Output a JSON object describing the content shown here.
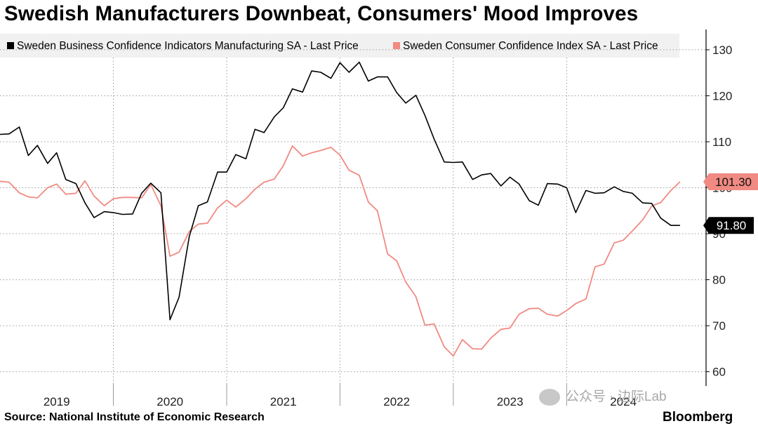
{
  "title": "Swedish Manufacturers Downbeat, Consumers' Mood Improves",
  "footer": {
    "source": "Source: National Institute of Economic Research",
    "brand": "Bloomberg"
  },
  "watermark": {
    "text": "公众号 · 边际Lab"
  },
  "chart_data": {
    "type": "line",
    "grid": true,
    "legend_position": "top-left",
    "yticks": [
      60,
      70,
      80,
      90,
      100,
      110,
      120,
      130
    ],
    "ylim": [
      57.5,
      133.5
    ],
    "xlim": [
      2018.5,
      2024.73
    ],
    "xticks": [
      {
        "label": "2019",
        "pos": 2019.0
      },
      {
        "label": "2020",
        "pos": 2020.0
      },
      {
        "label": "2021",
        "pos": 2021.0
      },
      {
        "label": "2022",
        "pos": 2022.0
      },
      {
        "label": "2023",
        "pos": 2023.0
      },
      {
        "label": "2024",
        "pos": 2024.0
      }
    ],
    "year_separators": [
      2019.5,
      2020.5,
      2021.5,
      2022.5,
      2023.5
    ],
    "series": [
      {
        "name": "Sweden Business Confidence Indicators Manufacturing SA - Last Price",
        "color": "#000000",
        "last_label": "91.80",
        "x": [
          2018.5,
          2018.58,
          2018.67,
          2018.75,
          2018.83,
          2018.92,
          2019.0,
          2019.08,
          2019.17,
          2019.25,
          2019.33,
          2019.42,
          2019.5,
          2019.58,
          2019.67,
          2019.75,
          2019.83,
          2019.92,
          2020.0,
          2020.08,
          2020.17,
          2020.25,
          2020.33,
          2020.42,
          2020.5,
          2020.58,
          2020.67,
          2020.75,
          2020.83,
          2020.92,
          2021.0,
          2021.08,
          2021.17,
          2021.25,
          2021.33,
          2021.42,
          2021.5,
          2021.58,
          2021.67,
          2021.75,
          2021.83,
          2021.92,
          2022.0,
          2022.08,
          2022.17,
          2022.25,
          2022.33,
          2022.42,
          2022.5,
          2022.58,
          2022.67,
          2022.75,
          2022.83,
          2022.92,
          2023.0,
          2023.08,
          2023.17,
          2023.25,
          2023.33,
          2023.42,
          2023.5,
          2023.58,
          2023.67,
          2023.75,
          2023.83,
          2023.92,
          2024.0,
          2024.08,
          2024.17,
          2024.25,
          2024.33,
          2024.42,
          2024.5
        ],
        "values": [
          111.6,
          111.7,
          113.2,
          107.0,
          109.2,
          105.3,
          107.6,
          101.8,
          100.9,
          96.7,
          93.5,
          94.8,
          94.6,
          94.2,
          94.3,
          98.8,
          101.0,
          98.9,
          71.3,
          76.2,
          89.4,
          96.1,
          96.9,
          103.4,
          103.4,
          107.2,
          106.3,
          112.7,
          112.0,
          115.4,
          117.4,
          121.5,
          120.8,
          125.4,
          125.1,
          123.8,
          127.2,
          125.1,
          127.3,
          123.2,
          124.1,
          124.1,
          120.7,
          118.4,
          120.1,
          115.7,
          110.6,
          105.6,
          105.5,
          105.6,
          101.8,
          102.8,
          103.1,
          100.4,
          102.3,
          100.8,
          97.2,
          96.2,
          100.9,
          100.8,
          100.0,
          94.6,
          99.4,
          98.8,
          98.9,
          100.2,
          99.2,
          98.8,
          96.7,
          96.6,
          93.4,
          91.8,
          91.8
        ]
      },
      {
        "name": "Sweden Consumer Confidence Index SA - Last Price",
        "color": "#f08a82",
        "last_label": "101.30",
        "x": [
          2018.5,
          2018.58,
          2018.67,
          2018.75,
          2018.83,
          2018.92,
          2019.0,
          2019.08,
          2019.17,
          2019.25,
          2019.33,
          2019.42,
          2019.5,
          2019.58,
          2019.67,
          2019.75,
          2019.83,
          2019.92,
          2020.0,
          2020.08,
          2020.17,
          2020.25,
          2020.33,
          2020.42,
          2020.5,
          2020.58,
          2020.67,
          2020.75,
          2020.83,
          2020.92,
          2021.0,
          2021.08,
          2021.17,
          2021.25,
          2021.33,
          2021.42,
          2021.5,
          2021.58,
          2021.67,
          2021.75,
          2021.83,
          2021.92,
          2022.0,
          2022.08,
          2022.17,
          2022.25,
          2022.33,
          2022.42,
          2022.5,
          2022.58,
          2022.67,
          2022.75,
          2022.83,
          2022.92,
          2023.0,
          2023.08,
          2023.17,
          2023.25,
          2023.33,
          2023.42,
          2023.5,
          2023.58,
          2023.67,
          2023.75,
          2023.83,
          2023.92,
          2024.0,
          2024.08,
          2024.17,
          2024.25,
          2024.33,
          2024.42,
          2024.5
        ],
        "values": [
          101.4,
          101.2,
          98.9,
          98.0,
          97.8,
          100.0,
          100.8,
          98.6,
          98.8,
          101.5,
          98.2,
          96.1,
          97.6,
          97.9,
          97.9,
          97.8,
          100.7,
          96.1,
          85.1,
          86.0,
          90.5,
          92.1,
          92.3,
          95.6,
          97.3,
          95.8,
          97.6,
          99.7,
          101.2,
          101.9,
          104.8,
          109.1,
          106.9,
          107.6,
          108.1,
          108.8,
          107.1,
          103.8,
          102.7,
          96.9,
          95.0,
          85.6,
          84.1,
          79.5,
          76.3,
          70.1,
          70.4,
          65.4,
          63.4,
          67.0,
          65.0,
          64.9,
          67.3,
          69.2,
          69.5,
          72.5,
          73.7,
          73.8,
          72.5,
          72.1,
          73.3,
          74.8,
          75.8,
          82.8,
          83.4,
          88.0,
          88.6,
          90.6,
          93.0,
          96.0,
          96.8,
          99.4,
          101.3
        ]
      }
    ]
  }
}
